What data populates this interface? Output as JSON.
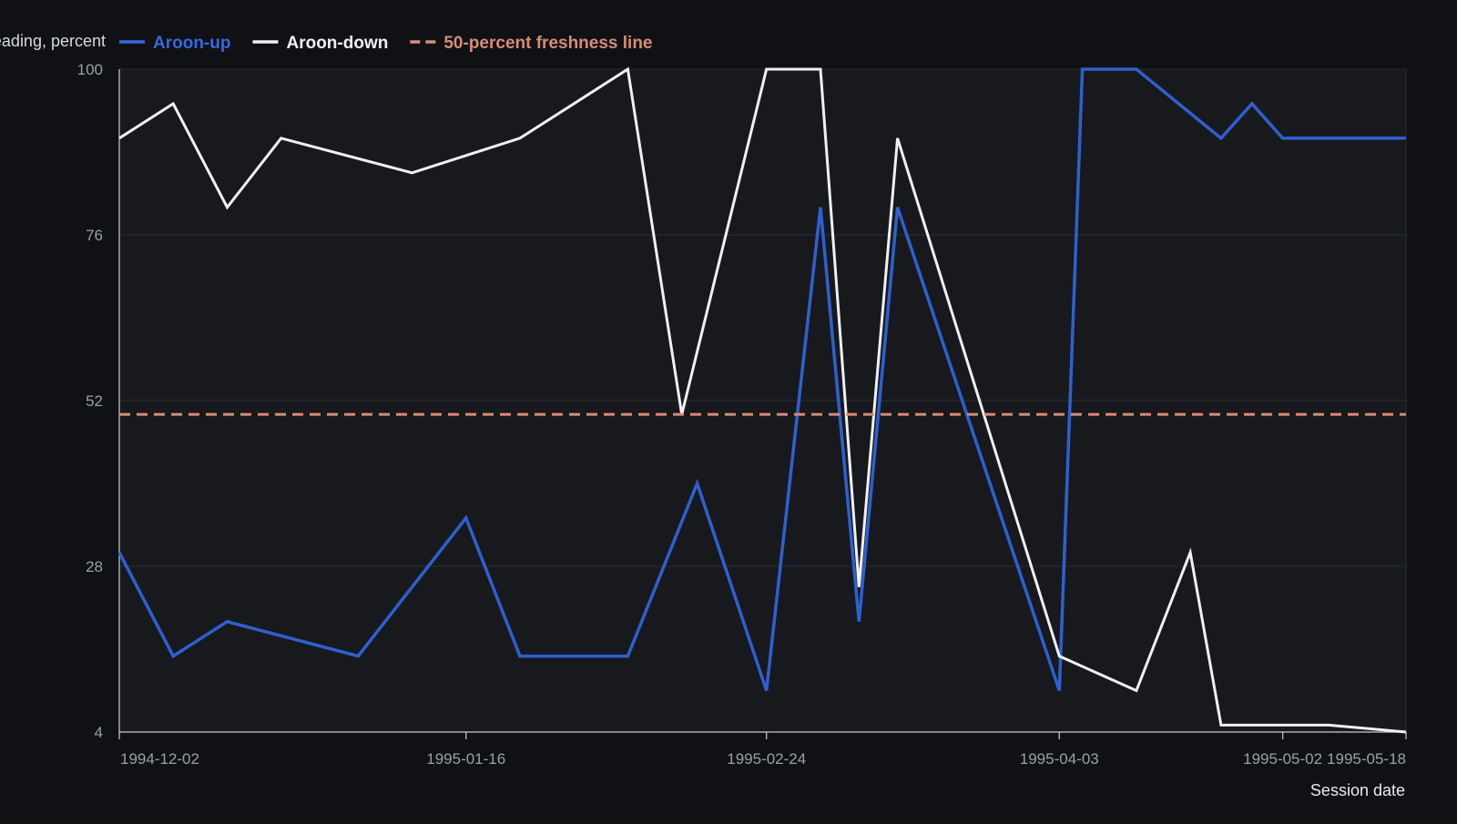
{
  "chart_data": {
    "type": "line",
    "title": "",
    "xlabel": "Session date",
    "ylabel": "Reading, percent",
    "ylim": [
      4,
      100
    ],
    "y_ticks": [
      4,
      28,
      52,
      76,
      100
    ],
    "x_tick_labels": [
      "1994-12-02",
      "1995-01-16",
      "1995-02-24",
      "1995-04-03",
      "1995-05-02",
      "1995-05-18"
    ],
    "grid": "horizontal",
    "legend_position": "top-left",
    "x": [
      "1994-12-02",
      "1994-12-09",
      "1994-12-16",
      "1994-12-23",
      "1995-01-02",
      "1995-01-09",
      "1995-01-16",
      "1995-01-23",
      "1995-02-06",
      "1995-02-13",
      "1995-02-15",
      "1995-02-24",
      "1995-03-03",
      "1995-03-08",
      "1995-03-13",
      "1995-04-03",
      "1995-04-06",
      "1995-04-13",
      "1995-04-20",
      "1995-04-24",
      "1995-04-28",
      "1995-05-02",
      "1995-05-08",
      "1995-05-18"
    ],
    "series": [
      {
        "name": "Aroon-up",
        "color": "#2f5fd0",
        "values": [
          30,
          15,
          20,
          null,
          15,
          null,
          35,
          15,
          15,
          null,
          40,
          10,
          80,
          20,
          80,
          10,
          100,
          100,
          null,
          90,
          95,
          90,
          90,
          90
        ]
      },
      {
        "name": "Aroon-down",
        "color": "#f0f0f0",
        "values": [
          90,
          95,
          80,
          90,
          null,
          85,
          null,
          90,
          100,
          50,
          null,
          100,
          100,
          25,
          90,
          15,
          null,
          10,
          30,
          5,
          5,
          5,
          5,
          4
        ]
      },
      {
        "name": "50-percent freshness line",
        "color": "#d88b78",
        "dashed": true,
        "constant": 50
      }
    ]
  }
}
